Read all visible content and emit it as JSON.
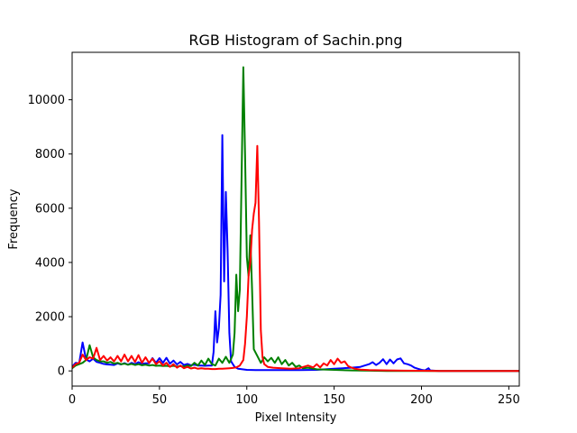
{
  "chart_data": {
    "type": "line",
    "title": "RGB Histogram of Sachin.png",
    "xlabel": "Pixel Intensity",
    "ylabel": "Frequency",
    "xlim": [
      0,
      256
    ],
    "ylim": [
      -560,
      11750
    ],
    "x_ticks": [
      0,
      50,
      100,
      150,
      200,
      250
    ],
    "y_ticks": [
      0,
      2000,
      4000,
      6000,
      8000,
      10000
    ],
    "grid": false,
    "legend": "none",
    "series": [
      {
        "color": "#0000ff",
        "points": [
          [
            0,
            150
          ],
          [
            2,
            300
          ],
          [
            4,
            280
          ],
          [
            6,
            1050
          ],
          [
            8,
            420
          ],
          [
            10,
            350
          ],
          [
            12,
            450
          ],
          [
            14,
            330
          ],
          [
            16,
            300
          ],
          [
            18,
            260
          ],
          [
            20,
            240
          ],
          [
            22,
            230
          ],
          [
            24,
            220
          ],
          [
            26,
            280
          ],
          [
            28,
            240
          ],
          [
            30,
            290
          ],
          [
            32,
            230
          ],
          [
            34,
            300
          ],
          [
            36,
            250
          ],
          [
            38,
            320
          ],
          [
            40,
            260
          ],
          [
            42,
            280
          ],
          [
            44,
            280
          ],
          [
            46,
            470
          ],
          [
            48,
            300
          ],
          [
            50,
            470
          ],
          [
            52,
            300
          ],
          [
            54,
            480
          ],
          [
            56,
            270
          ],
          [
            58,
            380
          ],
          [
            60,
            240
          ],
          [
            62,
            330
          ],
          [
            64,
            220
          ],
          [
            66,
            260
          ],
          [
            68,
            210
          ],
          [
            70,
            230
          ],
          [
            72,
            200
          ],
          [
            74,
            200
          ],
          [
            76,
            190
          ],
          [
            78,
            200
          ],
          [
            80,
            200
          ],
          [
            81,
            700
          ],
          [
            82,
            2200
          ],
          [
            83,
            1050
          ],
          [
            84,
            1600
          ],
          [
            85,
            2800
          ],
          [
            86,
            8700
          ],
          [
            87,
            3300
          ],
          [
            88,
            6600
          ],
          [
            89,
            4500
          ],
          [
            90,
            1400
          ],
          [
            91,
            350
          ],
          [
            93,
            150
          ],
          [
            95,
            80
          ],
          [
            100,
            40
          ],
          [
            105,
            30
          ],
          [
            110,
            30
          ],
          [
            120,
            30
          ],
          [
            130,
            30
          ],
          [
            140,
            40
          ],
          [
            150,
            80
          ],
          [
            155,
            100
          ],
          [
            160,
            120
          ],
          [
            165,
            150
          ],
          [
            170,
            250
          ],
          [
            172,
            320
          ],
          [
            174,
            220
          ],
          [
            176,
            300
          ],
          [
            178,
            430
          ],
          [
            180,
            250
          ],
          [
            182,
            420
          ],
          [
            184,
            280
          ],
          [
            186,
            420
          ],
          [
            188,
            460
          ],
          [
            190,
            280
          ],
          [
            192,
            250
          ],
          [
            194,
            200
          ],
          [
            196,
            120
          ],
          [
            198,
            80
          ],
          [
            200,
            40
          ],
          [
            202,
            20
          ],
          [
            204,
            100
          ],
          [
            205,
            20
          ],
          [
            210,
            0
          ],
          [
            220,
            0
          ],
          [
            240,
            0
          ],
          [
            256,
            0
          ]
        ]
      },
      {
        "color": "#008000",
        "points": [
          [
            0,
            100
          ],
          [
            2,
            200
          ],
          [
            4,
            250
          ],
          [
            6,
            300
          ],
          [
            8,
            400
          ],
          [
            10,
            950
          ],
          [
            12,
            500
          ],
          [
            14,
            400
          ],
          [
            16,
            350
          ],
          [
            18,
            350
          ],
          [
            20,
            300
          ],
          [
            22,
            330
          ],
          [
            24,
            270
          ],
          [
            26,
            300
          ],
          [
            28,
            250
          ],
          [
            30,
            270
          ],
          [
            32,
            230
          ],
          [
            34,
            260
          ],
          [
            36,
            220
          ],
          [
            38,
            250
          ],
          [
            40,
            210
          ],
          [
            42,
            230
          ],
          [
            44,
            200
          ],
          [
            46,
            220
          ],
          [
            48,
            190
          ],
          [
            50,
            200
          ],
          [
            52,
            180
          ],
          [
            54,
            190
          ],
          [
            56,
            170
          ],
          [
            58,
            190
          ],
          [
            60,
            160
          ],
          [
            62,
            180
          ],
          [
            64,
            160
          ],
          [
            66,
            200
          ],
          [
            68,
            180
          ],
          [
            70,
            300
          ],
          [
            72,
            200
          ],
          [
            74,
            380
          ],
          [
            76,
            220
          ],
          [
            78,
            450
          ],
          [
            80,
            250
          ],
          [
            82,
            200
          ],
          [
            84,
            450
          ],
          [
            86,
            300
          ],
          [
            88,
            520
          ],
          [
            90,
            300
          ],
          [
            92,
            600
          ],
          [
            93,
            1400
          ],
          [
            94,
            3550
          ],
          [
            95,
            2200
          ],
          [
            96,
            3000
          ],
          [
            97,
            7000
          ],
          [
            98,
            11200
          ],
          [
            99,
            8000
          ],
          [
            100,
            4200
          ],
          [
            101,
            3500
          ],
          [
            102,
            5000
          ],
          [
            103,
            3000
          ],
          [
            104,
            800
          ],
          [
            106,
            550
          ],
          [
            108,
            300
          ],
          [
            110,
            500
          ],
          [
            112,
            350
          ],
          [
            114,
            480
          ],
          [
            116,
            300
          ],
          [
            118,
            500
          ],
          [
            120,
            250
          ],
          [
            122,
            400
          ],
          [
            124,
            200
          ],
          [
            126,
            300
          ],
          [
            128,
            150
          ],
          [
            130,
            200
          ],
          [
            132,
            100
          ],
          [
            135,
            120
          ],
          [
            140,
            60
          ],
          [
            150,
            40
          ],
          [
            160,
            20
          ],
          [
            170,
            10
          ],
          [
            180,
            0
          ],
          [
            200,
            0
          ],
          [
            256,
            0
          ]
        ]
      },
      {
        "color": "#ff0000",
        "points": [
          [
            0,
            120
          ],
          [
            2,
            250
          ],
          [
            4,
            300
          ],
          [
            6,
            600
          ],
          [
            8,
            400
          ],
          [
            10,
            500
          ],
          [
            12,
            450
          ],
          [
            14,
            850
          ],
          [
            16,
            400
          ],
          [
            18,
            550
          ],
          [
            20,
            380
          ],
          [
            22,
            500
          ],
          [
            24,
            350
          ],
          [
            26,
            550
          ],
          [
            28,
            350
          ],
          [
            30,
            600
          ],
          [
            32,
            350
          ],
          [
            34,
            550
          ],
          [
            36,
            330
          ],
          [
            38,
            580
          ],
          [
            40,
            300
          ],
          [
            42,
            500
          ],
          [
            44,
            300
          ],
          [
            46,
            450
          ],
          [
            48,
            250
          ],
          [
            50,
            350
          ],
          [
            52,
            200
          ],
          [
            54,
            300
          ],
          [
            56,
            150
          ],
          [
            58,
            250
          ],
          [
            60,
            120
          ],
          [
            62,
            200
          ],
          [
            64,
            100
          ],
          [
            66,
            150
          ],
          [
            68,
            90
          ],
          [
            70,
            120
          ],
          [
            72,
            80
          ],
          [
            74,
            100
          ],
          [
            76,
            80
          ],
          [
            78,
            80
          ],
          [
            80,
            70
          ],
          [
            82,
            70
          ],
          [
            84,
            80
          ],
          [
            86,
            80
          ],
          [
            88,
            90
          ],
          [
            90,
            100
          ],
          [
            92,
            110
          ],
          [
            94,
            130
          ],
          [
            96,
            200
          ],
          [
            98,
            400
          ],
          [
            99,
            1000
          ],
          [
            100,
            2000
          ],
          [
            101,
            3500
          ],
          [
            102,
            4000
          ],
          [
            103,
            5200
          ],
          [
            104,
            5800
          ],
          [
            105,
            6200
          ],
          [
            106,
            8300
          ],
          [
            107,
            5500
          ],
          [
            108,
            1500
          ],
          [
            109,
            500
          ],
          [
            110,
            250
          ],
          [
            112,
            150
          ],
          [
            115,
            120
          ],
          [
            120,
            100
          ],
          [
            125,
            80
          ],
          [
            130,
            100
          ],
          [
            135,
            200
          ],
          [
            138,
            130
          ],
          [
            140,
            250
          ],
          [
            142,
            130
          ],
          [
            144,
            280
          ],
          [
            146,
            200
          ],
          [
            148,
            400
          ],
          [
            150,
            250
          ],
          [
            152,
            450
          ],
          [
            154,
            300
          ],
          [
            156,
            350
          ],
          [
            158,
            180
          ],
          [
            160,
            120
          ],
          [
            162,
            80
          ],
          [
            165,
            50
          ],
          [
            170,
            30
          ],
          [
            180,
            20
          ],
          [
            190,
            10
          ],
          [
            200,
            5
          ],
          [
            210,
            0
          ],
          [
            256,
            0
          ]
        ]
      }
    ]
  }
}
